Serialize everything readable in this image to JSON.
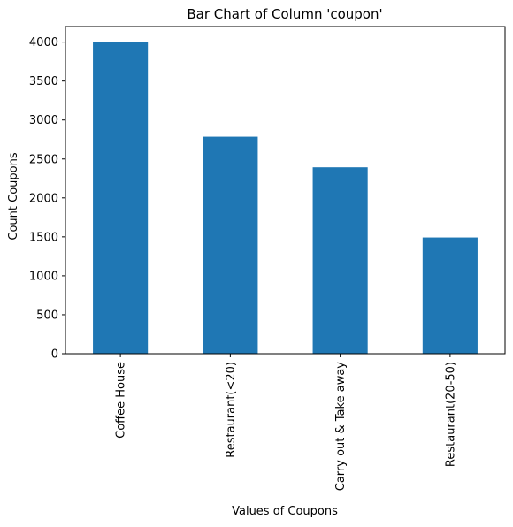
{
  "chart_data": {
    "type": "bar",
    "title": "Bar Chart of Column 'coupon'",
    "xlabel": "Values of Coupons",
    "ylabel": "Count Coupons",
    "categories": [
      "Coffee House",
      "Restaurant(<20)",
      "Carry out & Take away",
      "Restaurant(20-50)"
    ],
    "values": [
      3996,
      2786,
      2393,
      1492
    ],
    "ylim": [
      0,
      4200
    ],
    "yticks": [
      0,
      500,
      1000,
      1500,
      2000,
      2500,
      3000,
      3500,
      4000
    ],
    "bar_color": "#1f77b4",
    "grid": false,
    "legend": false
  }
}
